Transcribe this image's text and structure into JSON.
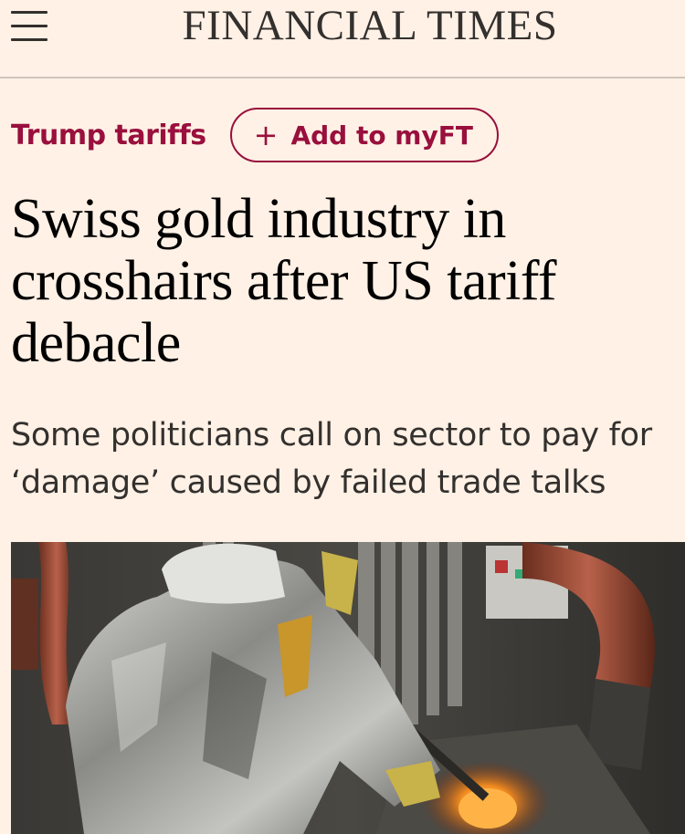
{
  "header": {
    "masthead": "FINANCIAL TIMES",
    "menu_icon": "hamburger-menu-icon"
  },
  "article": {
    "topic": "Trump tariffs",
    "follow_button_label": "Add to myFT",
    "follow_icon": "plus-icon",
    "headline": "Swiss gold industry in crosshairs after US tariff debacle",
    "standfirst": "Some politicians call on sector to pay for ‘damage’ caused by failed trade talks"
  },
  "colors": {
    "background": "#fff1e5",
    "claret": "#990f3d",
    "text": "#33302e"
  }
}
